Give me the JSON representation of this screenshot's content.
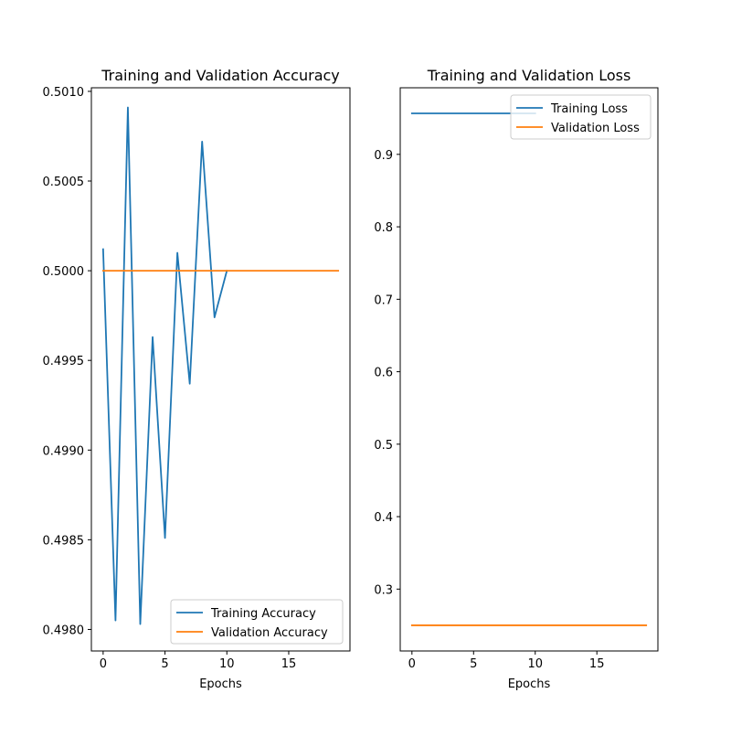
{
  "chart_data": [
    {
      "type": "line",
      "title": "Training and Validation Accuracy",
      "xlabel": "Epochs",
      "ylabel": "",
      "xlim": [
        -0.95,
        19.95
      ],
      "ylim": [
        0.49788,
        0.50102
      ],
      "xticks": [
        0,
        5,
        10,
        15
      ],
      "yticks": [
        0.498,
        0.4985,
        0.499,
        0.4995,
        0.5,
        0.5005,
        0.501
      ],
      "ytick_labels": [
        "0.4980",
        "0.4985",
        "0.4990",
        "0.4995",
        "0.5000",
        "0.5005",
        "0.5010"
      ],
      "grid": false,
      "legend_position": "lower-right",
      "series": [
        {
          "name": "Training Accuracy",
          "color": "#1f77b4",
          "x": [
            0,
            1,
            2,
            3,
            4,
            5,
            6,
            7,
            8,
            9,
            10
          ],
          "y": [
            0.50012,
            0.49805,
            0.50091,
            0.49803,
            0.49963,
            0.49851,
            0.5001,
            0.49937,
            0.50072,
            0.49974,
            0.5
          ]
        },
        {
          "name": "Validation Accuracy",
          "color": "#ff7f0e",
          "x": [
            0,
            1,
            2,
            3,
            4,
            5,
            6,
            7,
            8,
            9,
            10,
            11,
            12,
            13,
            14,
            15,
            16,
            17,
            18,
            19
          ],
          "y": [
            0.5,
            0.5,
            0.5,
            0.5,
            0.5,
            0.5,
            0.5,
            0.5,
            0.5,
            0.5,
            0.5,
            0.5,
            0.5,
            0.5,
            0.5,
            0.5,
            0.5,
            0.5,
            0.5,
            0.5
          ]
        }
      ]
    },
    {
      "type": "line",
      "title": "Training and Validation Loss",
      "xlabel": "Epochs",
      "ylabel": "",
      "xlim": [
        -0.95,
        19.95
      ],
      "ylim": [
        0.2146,
        0.9919
      ],
      "xticks": [
        0,
        5,
        10,
        15
      ],
      "yticks": [
        0.3,
        0.4,
        0.5,
        0.6,
        0.7,
        0.8,
        0.9
      ],
      "ytick_labels": [
        "0.3",
        "0.4",
        "0.5",
        "0.6",
        "0.7",
        "0.8",
        "0.9"
      ],
      "grid": false,
      "legend_position": "upper-right",
      "series": [
        {
          "name": "Training Loss",
          "color": "#1f77b4",
          "x": [
            0,
            1,
            2,
            3,
            4,
            5,
            6,
            7,
            8,
            9,
            10
          ],
          "y": [
            0.9566,
            0.9566,
            0.9566,
            0.9566,
            0.9566,
            0.9566,
            0.9566,
            0.9566,
            0.9566,
            0.9566,
            0.9566
          ]
        },
        {
          "name": "Validation Loss",
          "color": "#ff7f0e",
          "x": [
            0,
            1,
            2,
            3,
            4,
            5,
            6,
            7,
            8,
            9,
            10,
            11,
            12,
            13,
            14,
            15,
            16,
            17,
            18,
            19
          ],
          "y": [
            0.25,
            0.25,
            0.25,
            0.25,
            0.25,
            0.25,
            0.25,
            0.25,
            0.25,
            0.25,
            0.25,
            0.25,
            0.25,
            0.25,
            0.25,
            0.25,
            0.25,
            0.25,
            0.25,
            0.25
          ]
        }
      ]
    }
  ]
}
